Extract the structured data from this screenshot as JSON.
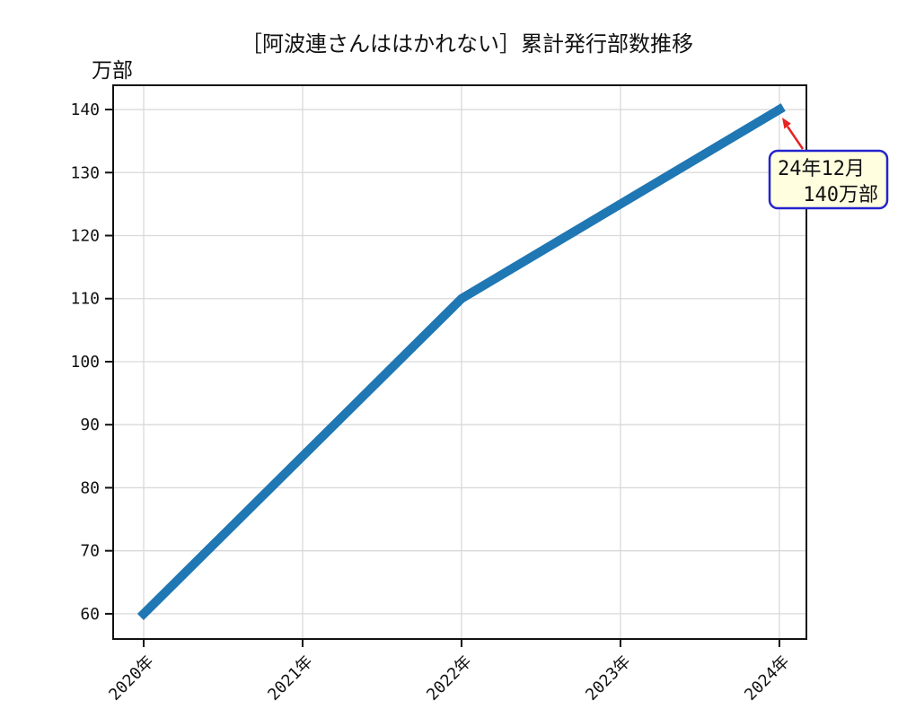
{
  "chart_data": {
    "type": "line",
    "title": "［阿波連さんははかれない］累計発行部数推移",
    "ylabel": "万部",
    "xlabel": "",
    "x": [
      2020,
      2022,
      2024
    ],
    "values": [
      60,
      110,
      140
    ],
    "x_ticks": [
      2020,
      2021,
      2022,
      2023,
      2024
    ],
    "x_tick_labels": [
      "2020年",
      "2021年",
      "2022年",
      "2023年",
      "2024年"
    ],
    "y_ticks": [
      60,
      70,
      80,
      90,
      100,
      110,
      120,
      130,
      140
    ],
    "xlim": [
      2019.808,
      2024.17
    ],
    "ylim": [
      56,
      143.85
    ],
    "grid": true,
    "legend_position": "none",
    "line_color": "#1f77b4",
    "line_width": 10,
    "axis_color": "#111111",
    "grid_color": "#d9d9d9",
    "annotation": {
      "line1": "24年12月",
      "line2": "140万部",
      "target_x": 2024,
      "target_y": 140,
      "box_fill": "#ffffe0",
      "border_color": "#2323cd",
      "text_color": "#2323cd",
      "arrow_color": "#e62222"
    }
  }
}
